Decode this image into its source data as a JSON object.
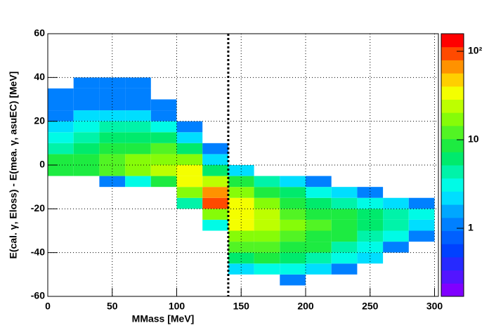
{
  "chart_data": {
    "type": "heatmap",
    "x_label": "MMass [MeV]",
    "y_label": "E(cal. γ, Eloss) - E(mea.  γ, asuEC) [MeV]",
    "xlim": [
      0,
      303
    ],
    "ylim": [
      -60,
      60
    ],
    "xticks": [
      0,
      50,
      100,
      150,
      200,
      250,
      300
    ],
    "yticks": [
      -60,
      -40,
      -20,
      0,
      20,
      40,
      60
    ],
    "grid": true,
    "log_z": true,
    "zlim": [
      0.17,
      158
    ],
    "zticks": [
      1,
      10,
      {
        "value": 100,
        "label": "10²"
      }
    ],
    "vline": 140,
    "xbins": [
      0,
      20,
      40,
      60,
      80,
      100,
      120,
      140,
      160,
      180,
      200,
      220,
      240,
      260,
      280,
      300
    ],
    "ybins": [
      -60,
      -55,
      -50,
      -45,
      -40,
      -35,
      -30,
      -25,
      -20,
      -15,
      -10,
      -5,
      0,
      5,
      10,
      15,
      20,
      25,
      30,
      35,
      40,
      45,
      50,
      55,
      60
    ],
    "z": [
      [
        0,
        0,
        0,
        0,
        0,
        0,
        0,
        0,
        0,
        0,
        0,
        0,
        0,
        0,
        0
      ],
      [
        0,
        0,
        0,
        0,
        0,
        0,
        0,
        0,
        0,
        1,
        0,
        0,
        0,
        0,
        0
      ],
      [
        0,
        0,
        0,
        0,
        0,
        0,
        0,
        2,
        3,
        3,
        2,
        1,
        0,
        0,
        0
      ],
      [
        0,
        0,
        0,
        0,
        0,
        0,
        0,
        6,
        8,
        6,
        4,
        3,
        2,
        0,
        0
      ],
      [
        0,
        0,
        0,
        0,
        0,
        0,
        0,
        12,
        12,
        10,
        8,
        5,
        3,
        1,
        0
      ],
      [
        0,
        0,
        0,
        0,
        0,
        0,
        0,
        20,
        18,
        14,
        10,
        8,
        5,
        3,
        1
      ],
      [
        0,
        0,
        0,
        0,
        0,
        0,
        3,
        30,
        22,
        16,
        12,
        9,
        6,
        4,
        2
      ],
      [
        0,
        0,
        0,
        0,
        0,
        0,
        15,
        40,
        22,
        14,
        10,
        8,
        6,
        4,
        3
      ],
      [
        0,
        0,
        0,
        0,
        0,
        5,
        80,
        30,
        16,
        10,
        7,
        5,
        3,
        2,
        1
      ],
      [
        0,
        0,
        0,
        0,
        0,
        15,
        60,
        20,
        10,
        6,
        3,
        2,
        1,
        0,
        0
      ],
      [
        0,
        0,
        1,
        3,
        8,
        40,
        25,
        10,
        4,
        2,
        1,
        0,
        0,
        0,
        0
      ],
      [
        8,
        10,
        12,
        15,
        25,
        40,
        6,
        2,
        0,
        0,
        0,
        0,
        0,
        0,
        0
      ],
      [
        8,
        10,
        12,
        15,
        20,
        15,
        2,
        0,
        0,
        0,
        0,
        0,
        0,
        0,
        0
      ],
      [
        5,
        7,
        9,
        10,
        12,
        6,
        1,
        0,
        0,
        0,
        0,
        0,
        0,
        0,
        0
      ],
      [
        3,
        5,
        6,
        7,
        6,
        2,
        0,
        0,
        0,
        0,
        0,
        0,
        0,
        0,
        0
      ],
      [
        2,
        3,
        4,
        4,
        3,
        1,
        0,
        0,
        0,
        0,
        0,
        0,
        0,
        0,
        0
      ],
      [
        1,
        2,
        2,
        2,
        1,
        0,
        0,
        0,
        0,
        0,
        0,
        0,
        0,
        0,
        0
      ],
      [
        1,
        1,
        1,
        1,
        1,
        0,
        0,
        0,
        0,
        0,
        0,
        0,
        0,
        0,
        0
      ],
      [
        1,
        1,
        1,
        1,
        0,
        0,
        0,
        0,
        0,
        0,
        0,
        0,
        0,
        0,
        0
      ],
      [
        0,
        1,
        1,
        1,
        0,
        0,
        0,
        0,
        0,
        0,
        0,
        0,
        0,
        0,
        0
      ],
      [
        0,
        0,
        0,
        0,
        0,
        0,
        0,
        0,
        0,
        0,
        0,
        0,
        0,
        0,
        0
      ],
      [
        0,
        0,
        0,
        0,
        0,
        0,
        0,
        0,
        0,
        0,
        0,
        0,
        0,
        0,
        0
      ],
      [
        0,
        0,
        0,
        0,
        0,
        0,
        0,
        0,
        0,
        0,
        0,
        0,
        0,
        0,
        0
      ],
      [
        0,
        0,
        0,
        0,
        0,
        0,
        0,
        0,
        0,
        0,
        0,
        0,
        0,
        0,
        0
      ]
    ]
  }
}
